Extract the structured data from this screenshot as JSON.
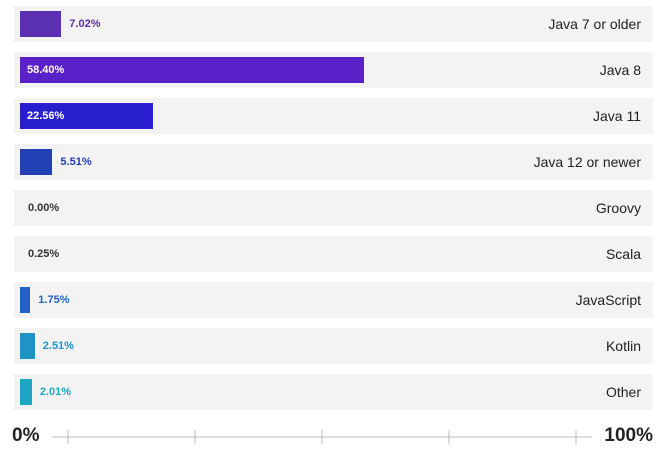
{
  "chart_data": {
    "type": "bar",
    "orientation": "horizontal",
    "categories": [
      "Java 7 or older",
      "Java 8",
      "Java 11",
      "Java 12 or newer",
      "Groovy",
      "Scala",
      "JavaScript",
      "Kotlin",
      "Other"
    ],
    "values": [
      7.02,
      58.4,
      22.56,
      5.51,
      0.0,
      0.25,
      1.75,
      2.51,
      2.01
    ],
    "value_labels": [
      "7.02%",
      "58.40%",
      "22.56%",
      "5.51%",
      "0.00%",
      "0.25%",
      "1.75%",
      "2.51%",
      "2.01%"
    ],
    "colors": [
      "#5a2fb0",
      "#5b21c9",
      "#2a1fcf",
      "#2340b5",
      "#333333",
      "#333333",
      "#1f5fc8",
      "#1f93c4",
      "#1fa6c4"
    ],
    "xlim": [
      0,
      100
    ],
    "axis_labels": {
      "min": "0%",
      "max": "100%"
    },
    "title": "",
    "xlabel": "",
    "ylabel": "",
    "grid": false,
    "legend": "none"
  }
}
